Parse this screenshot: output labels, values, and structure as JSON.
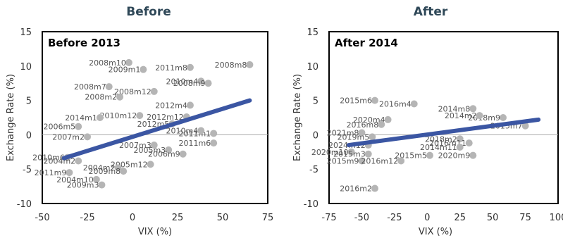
{
  "chart_data": [
    {
      "type": "scatter",
      "title": "Before",
      "inset_label": "Before 2013",
      "xlabel": "VIX (%)",
      "ylabel": "Exchange Rate (%)",
      "xlim": [
        -50,
        75
      ],
      "ylim": [
        -10,
        15
      ],
      "xticks": [
        -50,
        -25,
        0,
        25,
        50,
        75
      ],
      "yticks": [
        -10,
        -5,
        0,
        5,
        10,
        15
      ],
      "points": [
        {
          "x": -2,
          "y": 10.5,
          "label": "2008m10"
        },
        {
          "x": 6,
          "y": 9.5,
          "label": "2009m1"
        },
        {
          "x": 32,
          "y": 9.8,
          "label": "2011m8"
        },
        {
          "x": 65,
          "y": 10.2,
          "label": "2008m8"
        },
        {
          "x": 38,
          "y": 7.8,
          "label": "2010m4"
        },
        {
          "x": 42,
          "y": 7.5,
          "label": "2008m9"
        },
        {
          "x": -13,
          "y": 7.0,
          "label": "2008m7"
        },
        {
          "x": 12,
          "y": 6.3,
          "label": "2008m12"
        },
        {
          "x": -7,
          "y": 5.5,
          "label": "2008m2"
        },
        {
          "x": 32,
          "y": 4.3,
          "label": "2012m4"
        },
        {
          "x": 30,
          "y": 2.6,
          "label": "2012m12"
        },
        {
          "x": 4,
          "y": 2.8,
          "label": "2010m12"
        },
        {
          "x": -18,
          "y": 2.5,
          "label": "2014m1"
        },
        {
          "x": 22,
          "y": 1.6,
          "label": "2012m5"
        },
        {
          "x": 45,
          "y": 0.2,
          "label": "2011m1"
        },
        {
          "x": 38,
          "y": 0.6,
          "label": "2010m4"
        },
        {
          "x": 45,
          "y": -1.2,
          "label": "2011m6"
        },
        {
          "x": -30,
          "y": 1.2,
          "label": "2006m5"
        },
        {
          "x": -25,
          "y": -0.3,
          "label": "2007m2"
        },
        {
          "x": 12,
          "y": -1.5,
          "label": "2007m3"
        },
        {
          "x": 20,
          "y": -2.2,
          "label": "2005m3"
        },
        {
          "x": 28,
          "y": -2.8,
          "label": "2006m9"
        },
        {
          "x": -36,
          "y": -3.3,
          "label": "2010m6"
        },
        {
          "x": -30,
          "y": -3.8,
          "label": "2004m2"
        },
        {
          "x": 10,
          "y": -4.3,
          "label": "2005m12"
        },
        {
          "x": -8,
          "y": -4.8,
          "label": "2004m2"
        },
        {
          "x": -5,
          "y": -5.3,
          "label": "2009m8"
        },
        {
          "x": -35,
          "y": -5.5,
          "label": "2011m9"
        },
        {
          "x": -20,
          "y": -6.5,
          "label": "2004m10"
        },
        {
          "x": -17,
          "y": -7.3,
          "label": "2009m3"
        }
      ],
      "trendline": {
        "x": [
          -38,
          65
        ],
        "y": [
          -3.4,
          5.0
        ]
      }
    },
    {
      "type": "scatter",
      "title": "After",
      "inset_label": "After 2014",
      "xlabel": "VIX (%)",
      "ylabel": "Exchange Rate (%)",
      "xlim": [
        -75,
        100
      ],
      "ylim": [
        -10,
        15
      ],
      "xticks": [
        -75,
        -50,
        -25,
        0,
        25,
        50,
        75,
        100
      ],
      "yticks": [
        -10,
        -5,
        0,
        5,
        10,
        15
      ],
      "points": [
        {
          "x": -40,
          "y": 5.0,
          "label": "2015m6"
        },
        {
          "x": -10,
          "y": 4.5,
          "label": "2016m4"
        },
        {
          "x": 35,
          "y": 3.8,
          "label": "2014m8"
        },
        {
          "x": 58,
          "y": 2.5,
          "label": "2018m9"
        },
        {
          "x": 40,
          "y": 2.8,
          "label": "2014m2"
        },
        {
          "x": -30,
          "y": 2.2,
          "label": "2020m4"
        },
        {
          "x": -35,
          "y": 1.5,
          "label": "2016m8"
        },
        {
          "x": 75,
          "y": 1.3,
          "label": "2015m7"
        },
        {
          "x": -50,
          "y": 0.3,
          "label": "2021m8"
        },
        {
          "x": -42,
          "y": -0.3,
          "label": "2019m5"
        },
        {
          "x": 25,
          "y": -0.6,
          "label": "2018m2"
        },
        {
          "x": 32,
          "y": -1.2,
          "label": "2016m11"
        },
        {
          "x": 25,
          "y": -1.8,
          "label": "2014m11"
        },
        {
          "x": -45,
          "y": -1.5,
          "label": "2024m12"
        },
        {
          "x": -58,
          "y": -2.5,
          "label": "2020m10"
        },
        {
          "x": -45,
          "y": -2.8,
          "label": "2015m3"
        },
        {
          "x": 2,
          "y": -3.0,
          "label": "2015m5"
        },
        {
          "x": 35,
          "y": -3.0,
          "label": "2020m9"
        },
        {
          "x": -50,
          "y": -3.8,
          "label": "2015m9"
        },
        {
          "x": -20,
          "y": -3.8,
          "label": "2016m12"
        },
        {
          "x": -40,
          "y": -7.8,
          "label": "2016m2"
        }
      ],
      "trendline": {
        "x": [
          -60,
          85
        ],
        "y": [
          -1.5,
          2.2
        ]
      }
    }
  ]
}
